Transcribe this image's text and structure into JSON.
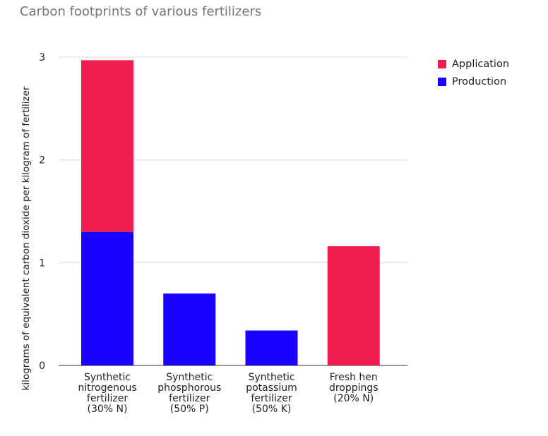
{
  "chart_data": {
    "type": "bar",
    "stacked": true,
    "title": "Carbon footprints of various fertilizers",
    "xlabel": "",
    "ylabel": "kilograms of equivalent carbon dioxide per kilogram of fertilizer",
    "ylim": [
      0,
      3
    ],
    "yticks": [
      "0",
      "1",
      "2",
      "3"
    ],
    "categories": [
      [
        "Synthetic",
        "nitrogenous",
        "fertilizer",
        "(30% N)"
      ],
      [
        "Synthetic",
        "phosphorous",
        "fertilizer",
        "(50% P)"
      ],
      [
        "Synthetic",
        "potassium",
        "fertilizer",
        "(50% K)"
      ],
      [
        "Fresh hen",
        "droppings",
        "(20% N)"
      ]
    ],
    "series": [
      {
        "name": "Production",
        "color": "#1a00ff",
        "values": [
          1.3,
          0.7,
          0.34,
          0
        ]
      },
      {
        "name": "Application",
        "color": "#f01e4f",
        "values": [
          1.67,
          0,
          0,
          1.16
        ]
      }
    ],
    "legend": {
      "position": "right",
      "items": [
        {
          "name": "Application",
          "color": "#f01e4f"
        },
        {
          "name": "Production",
          "color": "#1a00ff"
        }
      ]
    },
    "grid": true
  }
}
